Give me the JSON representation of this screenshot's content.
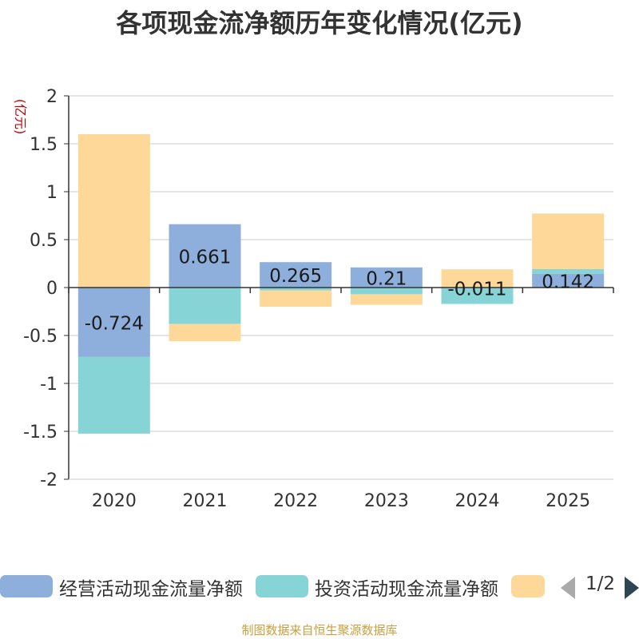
{
  "title": "各项现金流净额历年变化情况(亿元)",
  "source": "制图数据来自恒生聚源数据库",
  "legend_page": "1/2",
  "colors": {
    "operating": "#8eaedb",
    "investing": "#86d4d6",
    "financing": "#fdd899",
    "axis": "#333333",
    "grid": "#cccccc",
    "unit": "#cc0000"
  },
  "chart_data": {
    "type": "bar",
    "stacked": true,
    "title": "各项现金流净额历年变化情况(亿元)",
    "ylabel": "(亿元)",
    "xlabel": "",
    "ylim": [
      -2,
      2
    ],
    "yticks": [
      2,
      1.5,
      1,
      0.5,
      0,
      -0.5,
      -1,
      -1.5,
      -2
    ],
    "ytick_labels": [
      "2",
      "1.5",
      "1",
      "0.5",
      "0",
      "-0.5",
      "-1",
      "-1.5",
      "-2"
    ],
    "grid": true,
    "legend_position": "bottom",
    "categories": [
      "2020",
      "2021",
      "2022",
      "2023",
      "2024",
      "2025"
    ],
    "series": [
      {
        "name": "经营活动现金流量净额",
        "color_key": "operating",
        "values": [
          -0.724,
          0.661,
          0.265,
          0.21,
          -0.011,
          0.142
        ],
        "labels": [
          "-0.724",
          "0.661",
          "0.265",
          "0.21",
          "-0.011",
          "0.142"
        ]
      },
      {
        "name": "投资活动现金流量净额",
        "color_key": "investing",
        "values": [
          -0.8,
          -0.38,
          -0.03,
          -0.07,
          -0.16,
          0.05
        ]
      },
      {
        "name": "",
        "color_key": "financing",
        "values": [
          1.6,
          -0.18,
          -0.17,
          -0.11,
          0.19,
          0.58
        ]
      }
    ]
  }
}
